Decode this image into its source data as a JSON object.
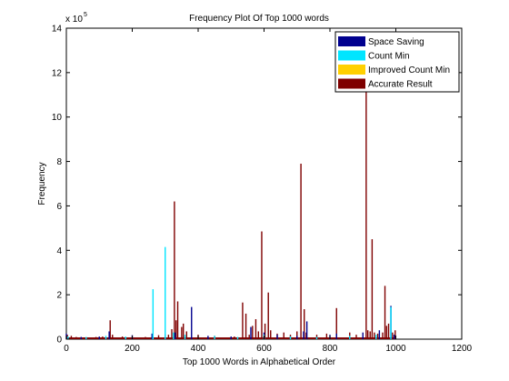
{
  "chart_data": {
    "type": "bar",
    "title": "Frequency Plot Of Top 1000 words",
    "xlabel": "Top 1000 Words in Alphabetical Order",
    "ylabel": "Frequency",
    "y_multiplier_base": "x 10",
    "y_multiplier_exponent": "5",
    "xlim": [
      0,
      1200
    ],
    "ylim": [
      0,
      14
    ],
    "x_ticks": [
      0,
      200,
      400,
      600,
      800,
      1000,
      1200
    ],
    "x_tick_labels": [
      "0",
      "200",
      "400",
      "600",
      "800",
      "1000",
      "1200"
    ],
    "y_ticks": [
      0,
      2,
      4,
      6,
      8,
      10,
      12,
      14
    ],
    "y_tick_labels": [
      "0",
      "2",
      "4",
      "6",
      "8",
      "10",
      "12",
      "14"
    ],
    "grid": false,
    "legend_position": "top-right",
    "series": [
      {
        "name": "Space Saving",
        "color": "#00008f",
        "points": [
          [
            0,
            0.25
          ],
          [
            45,
            0.1
          ],
          [
            100,
            0.12
          ],
          [
            130,
            0.35
          ],
          [
            200,
            0.18
          ],
          [
            260,
            0.25
          ],
          [
            300,
            0.22
          ],
          [
            330,
            0.3
          ],
          [
            380,
            1.45
          ],
          [
            430,
            0.15
          ],
          [
            500,
            0.12
          ],
          [
            560,
            0.55
          ],
          [
            600,
            0.3
          ],
          [
            640,
            0.2
          ],
          [
            700,
            0.15
          ],
          [
            720,
            0.35
          ],
          [
            730,
            0.8
          ],
          [
            800,
            0.2
          ],
          [
            820,
            0.25
          ],
          [
            900,
            0.3
          ],
          [
            950,
            0.4
          ],
          [
            985,
            1.5
          ],
          [
            995,
            0.2
          ]
        ]
      },
      {
        "name": "Count Min",
        "color": "#00e5ff",
        "points": [
          [
            5,
            0.12
          ],
          [
            60,
            0.1
          ],
          [
            120,
            0.15
          ],
          [
            180,
            0.12
          ],
          [
            263,
            2.25
          ],
          [
            300,
            4.15
          ],
          [
            325,
            0.3
          ],
          [
            360,
            0.2
          ],
          [
            450,
            0.15
          ],
          [
            520,
            0.1
          ],
          [
            600,
            0.2
          ],
          [
            680,
            0.12
          ],
          [
            760,
            0.1
          ],
          [
            860,
            0.15
          ],
          [
            940,
            0.2
          ],
          [
            985,
            1.45
          ]
        ]
      },
      {
        "name": "Improved Count Min",
        "color": "#ffd000",
        "points": []
      },
      {
        "name": "Accurate Result",
        "color": "#7f0000",
        "points": [
          [
            3,
            0.2
          ],
          [
            15,
            0.15
          ],
          [
            30,
            0.1
          ],
          [
            60,
            0.08
          ],
          [
            90,
            0.1
          ],
          [
            110,
            0.12
          ],
          [
            133,
            0.85
          ],
          [
            140,
            0.2
          ],
          [
            170,
            0.12
          ],
          [
            240,
            0.1
          ],
          [
            280,
            0.18
          ],
          [
            310,
            0.2
          ],
          [
            320,
            0.45
          ],
          [
            328,
            6.2
          ],
          [
            333,
            0.85
          ],
          [
            338,
            1.7
          ],
          [
            350,
            0.55
          ],
          [
            355,
            0.7
          ],
          [
            365,
            0.35
          ],
          [
            400,
            0.2
          ],
          [
            450,
            0.15
          ],
          [
            510,
            0.12
          ],
          [
            535,
            1.65
          ],
          [
            545,
            1.15
          ],
          [
            555,
            0.2
          ],
          [
            565,
            0.6
          ],
          [
            575,
            0.9
          ],
          [
            583,
            0.35
          ],
          [
            593,
            4.85
          ],
          [
            603,
            0.7
          ],
          [
            613,
            2.1
          ],
          [
            620,
            0.4
          ],
          [
            640,
            0.25
          ],
          [
            660,
            0.3
          ],
          [
            680,
            0.2
          ],
          [
            700,
            0.35
          ],
          [
            712,
            7.9
          ],
          [
            722,
            1.35
          ],
          [
            728,
            0.3
          ],
          [
            760,
            0.2
          ],
          [
            790,
            0.25
          ],
          [
            820,
            1.4
          ],
          [
            860,
            0.3
          ],
          [
            880,
            0.2
          ],
          [
            910,
            11.25
          ],
          [
            915,
            0.4
          ],
          [
            922,
            0.35
          ],
          [
            928,
            4.5
          ],
          [
            935,
            0.3
          ],
          [
            945,
            0.25
          ],
          [
            960,
            0.3
          ],
          [
            967,
            2.4
          ],
          [
            972,
            0.6
          ],
          [
            978,
            0.7
          ],
          [
            990,
            0.3
          ],
          [
            998,
            0.4
          ]
        ]
      }
    ]
  }
}
